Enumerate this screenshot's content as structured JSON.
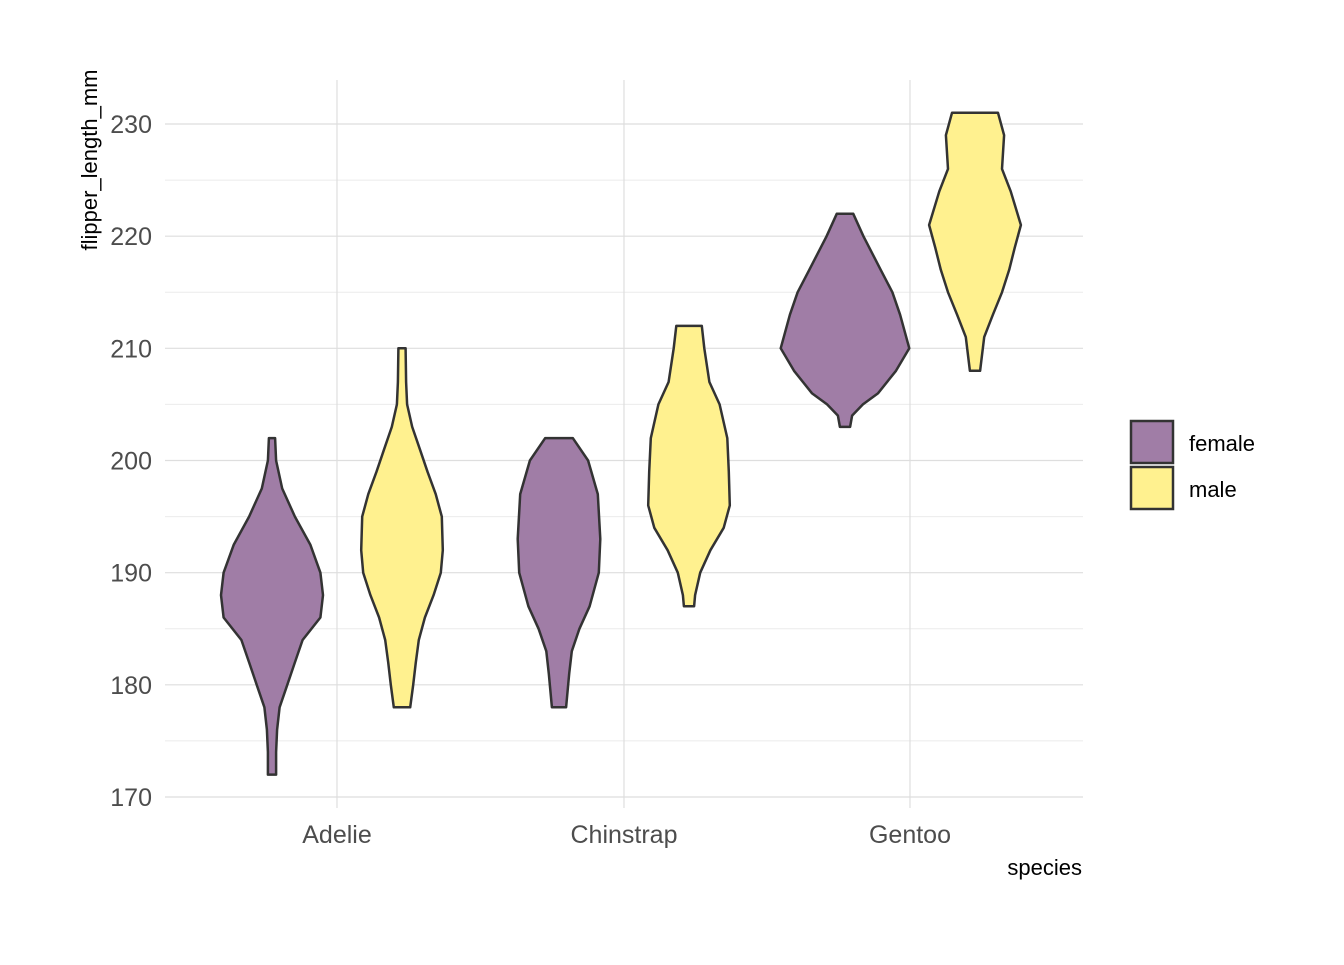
{
  "chart_data": {
    "type": "violin",
    "xlabel": "species",
    "ylabel": "flipper_length_mm",
    "ylim": [
      170,
      232
    ],
    "yticks": [
      170,
      180,
      190,
      200,
      210,
      220,
      230
    ],
    "categories": [
      "Adelie",
      "Chinstrap",
      "Gentoo"
    ],
    "legend": {
      "position": "right",
      "entries": [
        {
          "label": "female",
          "color": "#A07DA6"
        },
        {
          "label": "male",
          "color": "#FFF18F"
        }
      ]
    },
    "grid": true,
    "violins": [
      {
        "species": "Adelie",
        "sex": "female",
        "profile": [
          [
            202,
            0.06
          ],
          [
            200,
            0.08
          ],
          [
            197.5,
            0.2
          ],
          [
            195,
            0.45
          ],
          [
            192.5,
            0.75
          ],
          [
            190,
            0.95
          ],
          [
            188,
            1.0
          ],
          [
            186,
            0.95
          ],
          [
            184,
            0.6
          ],
          [
            182,
            0.45
          ],
          [
            180,
            0.3
          ],
          [
            178,
            0.15
          ],
          [
            176,
            0.1
          ],
          [
            174,
            0.08
          ],
          [
            172,
            0.08
          ]
        ]
      },
      {
        "species": "Adelie",
        "sex": "male",
        "profile": [
          [
            210,
            0.07
          ],
          [
            207,
            0.08
          ],
          [
            205,
            0.1
          ],
          [
            203,
            0.2
          ],
          [
            201,
            0.35
          ],
          [
            199,
            0.5
          ],
          [
            197,
            0.66
          ],
          [
            195,
            0.78
          ],
          [
            192,
            0.8
          ],
          [
            190,
            0.76
          ],
          [
            188,
            0.62
          ],
          [
            186,
            0.45
          ],
          [
            184,
            0.33
          ],
          [
            182,
            0.27
          ],
          [
            180,
            0.22
          ],
          [
            178,
            0.16
          ]
        ]
      },
      {
        "species": "Chinstrap",
        "sex": "female",
        "profile": [
          [
            202,
            0.27
          ],
          [
            200,
            0.57
          ],
          [
            197,
            0.76
          ],
          [
            193,
            0.81
          ],
          [
            190,
            0.78
          ],
          [
            187,
            0.6
          ],
          [
            185,
            0.4
          ],
          [
            183,
            0.25
          ],
          [
            181,
            0.2
          ],
          [
            178,
            0.14
          ]
        ]
      },
      {
        "species": "Chinstrap",
        "sex": "male",
        "profile": [
          [
            212,
            0.25
          ],
          [
            210,
            0.3
          ],
          [
            207,
            0.4
          ],
          [
            205,
            0.6
          ],
          [
            202,
            0.75
          ],
          [
            199,
            0.78
          ],
          [
            196,
            0.8
          ],
          [
            194,
            0.68
          ],
          [
            192,
            0.42
          ],
          [
            190,
            0.22
          ],
          [
            188,
            0.12
          ],
          [
            187,
            0.1
          ]
        ]
      },
      {
        "species": "Gentoo",
        "sex": "female",
        "profile": [
          [
            222,
            0.16
          ],
          [
            220,
            0.36
          ],
          [
            217,
            0.7
          ],
          [
            215,
            0.93
          ],
          [
            213,
            1.08
          ],
          [
            210,
            1.26
          ],
          [
            208,
            1.0
          ],
          [
            206,
            0.65
          ],
          [
            205,
            0.35
          ],
          [
            204,
            0.14
          ],
          [
            203,
            0.1
          ]
        ]
      },
      {
        "species": "Gentoo",
        "sex": "male",
        "profile": [
          [
            231,
            0.45
          ],
          [
            229,
            0.57
          ],
          [
            226,
            0.53
          ],
          [
            224,
            0.7
          ],
          [
            221,
            0.9
          ],
          [
            219,
            0.78
          ],
          [
            217,
            0.67
          ],
          [
            215,
            0.53
          ],
          [
            213,
            0.35
          ],
          [
            211,
            0.18
          ],
          [
            208,
            0.1
          ]
        ]
      }
    ]
  }
}
